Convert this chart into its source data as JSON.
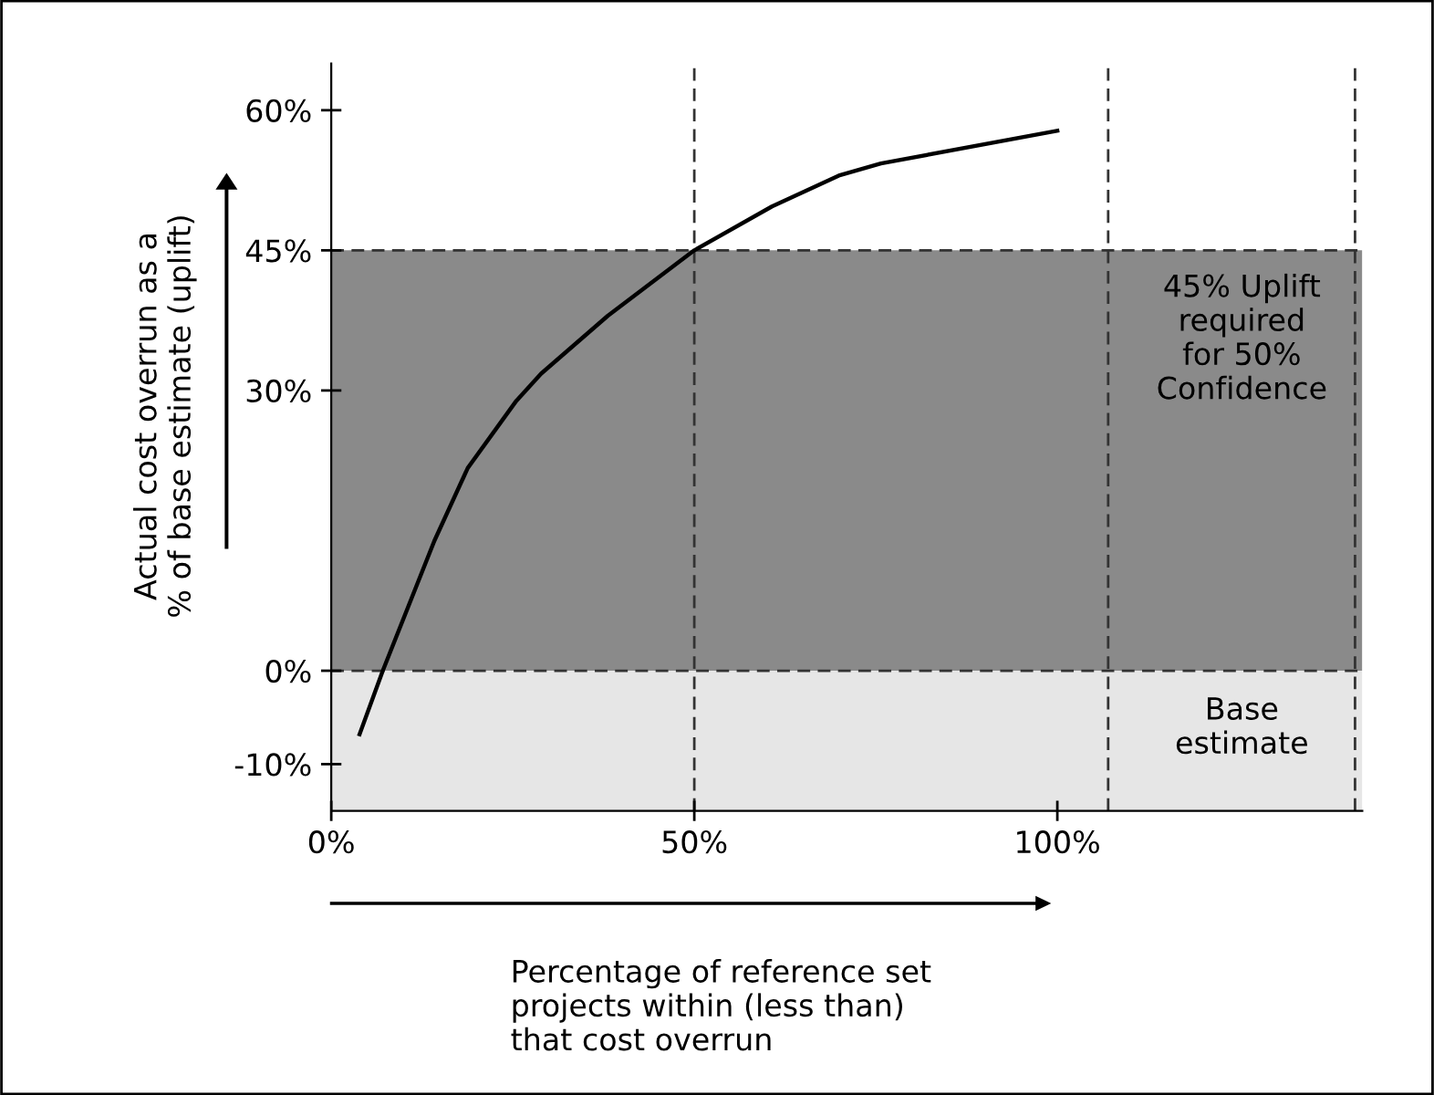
{
  "chart_data": {
    "type": "line",
    "xlabel": "Percentage of reference set\nprojects within (less than)\nthat cost overrun",
    "ylabel": "Actual cost overrun as a\n% of base estimate (uplift)",
    "x": [
      3.9,
      7.1,
      14.2,
      18.8,
      25.5,
      28.9,
      38.1,
      50,
      60.7,
      69.9,
      75.7,
      100
    ],
    "series": [
      {
        "color": "#000000",
        "values": [
          -6.8,
          0,
          13.9,
          21.7,
          28.9,
          31.8,
          38.0,
          45,
          49.7,
          53.0,
          54.3,
          57.8
        ]
      }
    ],
    "xlim": [
      0,
      142
    ],
    "ylim": [
      -15,
      65
    ],
    "xticks": [
      {
        "value": 0,
        "label": "0%"
      },
      {
        "value": 50,
        "label": "50%"
      },
      {
        "value": 100,
        "label": "100%"
      }
    ],
    "yticks": [
      {
        "value": -10,
        "label": "-10%"
      },
      {
        "value": 0,
        "label": "0%"
      },
      {
        "value": 30,
        "label": "30%"
      },
      {
        "value": 45,
        "label": "45%"
      },
      {
        "value": 60,
        "label": "60%"
      }
    ],
    "bands": [
      {
        "axis": "y",
        "from": 0,
        "to": 45,
        "color": "#8a8a8a"
      },
      {
        "axis": "y",
        "from": -15,
        "to": 0,
        "color": "#e6e6e6"
      }
    ],
    "ref_lines": [
      {
        "axis": "y",
        "value": 0,
        "line_style": "dashed"
      },
      {
        "axis": "y",
        "value": 45,
        "line_style": "dashed"
      },
      {
        "axis": "x",
        "value": 50,
        "line_style": "dashed"
      },
      {
        "axis": "x",
        "value": 107,
        "line_style": "dashed"
      },
      {
        "axis": "x",
        "value": 141,
        "line_style": "dashed"
      }
    ],
    "annotations": [
      "45% Uplift\nrequired\nfor 50%\nConfidence",
      "Base\nestimate"
    ],
    "grid": false,
    "legend": false,
    "marker": "none",
    "line_style": "solid"
  }
}
